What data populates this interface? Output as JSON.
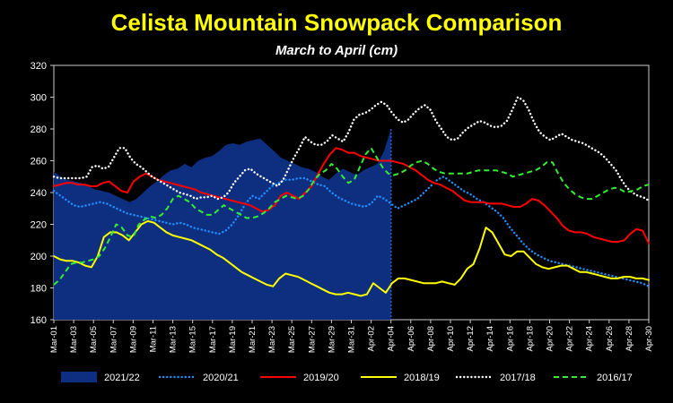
{
  "chart_data": {
    "type": "line",
    "title": "Celista Mountain Snowpack Comparison",
    "subtitle": "March to April  (cm)",
    "xlabel": "",
    "ylabel": "",
    "ylim": [
      160,
      320
    ],
    "yticks": [
      160,
      180,
      200,
      220,
      240,
      260,
      280,
      300,
      320
    ],
    "grid": false,
    "legend": "bottom",
    "x_tick_labels": [
      "Mar-01",
      "Mar-03",
      "Mar-05",
      "Mar-07",
      "Mar-09",
      "Mar-11",
      "Mar-13",
      "Mar-15",
      "Mar-17",
      "Mar-19",
      "Mar-21",
      "Mar-23",
      "Mar-25",
      "Mar-27",
      "Mar-29",
      "Mar-31",
      "Apr-02",
      "Apr-04",
      "Apr-06",
      "Apr-08",
      "Apr-10",
      "Apr-12",
      "Apr-14",
      "Apr-16",
      "Apr-18",
      "Apr-20",
      "Apr-22",
      "Apr-24",
      "Apr-26",
      "Apr-28",
      "Apr-30"
    ],
    "series": [
      {
        "name": "2021/22",
        "style": "area",
        "color": "#0e2f7f",
        "values": [
          253,
          250,
          248,
          247,
          246,
          244,
          242,
          241,
          240,
          238,
          236,
          234,
          236,
          240,
          244,
          247,
          251,
          254,
          255,
          258,
          256,
          260,
          262,
          263,
          266,
          270,
          271,
          270,
          272,
          273,
          274,
          270,
          266,
          262,
          260,
          258,
          256,
          255,
          253,
          250,
          248,
          252,
          255,
          253,
          251,
          254,
          256,
          258,
          266,
          280
        ]
      },
      {
        "name": "2020/21",
        "style": "dotted",
        "color": "#1e90ff",
        "values": [
          241,
          238,
          235,
          232,
          231,
          232,
          233,
          234,
          233,
          231,
          229,
          227,
          226,
          225,
          224,
          223,
          222,
          221,
          220,
          221,
          220,
          218,
          217,
          216,
          215,
          214,
          216,
          220,
          226,
          233,
          238,
          236,
          240,
          244,
          246,
          248,
          248,
          249,
          249,
          247,
          245,
          244,
          240,
          237,
          235,
          233,
          232,
          231,
          233,
          238,
          236,
          233,
          230,
          232,
          234,
          236,
          240,
          244,
          248,
          250,
          247,
          244,
          241,
          239,
          236,
          234,
          231,
          228,
          224,
          218,
          213,
          208,
          204,
          201,
          199,
          197,
          196,
          195,
          194,
          193,
          192,
          191,
          190,
          189,
          188,
          187,
          186,
          185,
          184,
          183,
          181
        ]
      },
      {
        "name": "2019/20",
        "style": "solid",
        "color": "#ff0000",
        "values": [
          244,
          245,
          246,
          246,
          245,
          245,
          244,
          244,
          246,
          247,
          244,
          241,
          240,
          247,
          250,
          252,
          250,
          248,
          247,
          246,
          245,
          244,
          243,
          242,
          240,
          239,
          238,
          237,
          236,
          235,
          234,
          233,
          232,
          230,
          228,
          229,
          232,
          238,
          240,
          238,
          236,
          240,
          244,
          251,
          258,
          264,
          268,
          267,
          265,
          265,
          263,
          262,
          261,
          260,
          260,
          260,
          259,
          258,
          256,
          254,
          251,
          248,
          246,
          245,
          243,
          241,
          238,
          235,
          234,
          234,
          234,
          233,
          233,
          233,
          232,
          231,
          231,
          233,
          236,
          235,
          232,
          228,
          224,
          219,
          216,
          215,
          215,
          214,
          212,
          211,
          210,
          209,
          209,
          210,
          214,
          217,
          216,
          208
        ]
      },
      {
        "name": "2018/19",
        "style": "solid",
        "color": "#ffff00",
        "values": [
          200,
          198,
          197,
          197,
          196,
          194,
          193,
          200,
          212,
          215,
          215,
          213,
          210,
          215,
          220,
          222,
          221,
          218,
          215,
          213,
          212,
          211,
          210,
          208,
          206,
          204,
          201,
          199,
          196,
          193,
          190,
          188,
          186,
          184,
          182,
          181,
          186,
          189,
          188,
          187,
          185,
          183,
          181,
          179,
          177,
          176,
          176,
          177,
          176,
          175,
          176,
          183,
          180,
          177,
          183,
          186,
          186,
          185,
          184,
          183,
          183,
          183,
          184,
          183,
          182,
          186,
          192,
          195,
          205,
          218,
          215,
          208,
          201,
          200,
          203,
          203,
          199,
          195,
          193,
          192,
          193,
          194,
          194,
          192,
          190,
          190,
          189,
          188,
          187,
          186,
          186,
          187,
          187,
          186,
          186,
          185
        ]
      },
      {
        "name": "2017/18",
        "style": "dotted",
        "color": "#ffffff",
        "values": [
          250,
          249,
          249,
          249,
          249,
          249,
          250,
          256,
          257,
          255,
          256,
          262,
          268,
          268,
          262,
          258,
          256,
          253,
          250,
          248,
          246,
          244,
          242,
          240,
          239,
          238,
          236,
          237,
          237,
          238,
          236,
          237,
          240,
          246,
          250,
          254,
          255,
          252,
          250,
          248,
          246,
          244,
          248,
          255,
          262,
          268,
          275,
          272,
          270,
          270,
          272,
          276,
          274,
          272,
          278,
          286,
          289,
          290,
          292,
          295,
          297,
          295,
          290,
          286,
          284,
          286,
          290,
          293,
          295,
          292,
          285,
          280,
          275,
          273,
          274,
          278,
          281,
          283,
          285,
          284,
          282,
          281,
          282,
          285,
          292,
          300,
          298,
          292,
          284,
          278,
          275,
          273,
          275,
          277,
          275,
          273,
          272,
          271,
          269,
          267,
          265,
          262,
          258,
          254,
          248,
          243,
          240,
          238,
          237,
          235
        ]
      },
      {
        "name": "2016/17",
        "style": "dashed",
        "color": "#33ee33",
        "values": [
          182,
          185,
          190,
          195,
          196,
          196,
          197,
          198,
          200,
          205,
          212,
          220,
          218,
          213,
          212,
          220,
          223,
          225,
          224,
          226,
          230,
          236,
          238,
          236,
          234,
          230,
          228,
          226,
          226,
          229,
          232,
          230,
          228,
          226,
          224,
          224,
          225,
          227,
          230,
          234,
          236,
          238,
          237,
          236,
          238,
          242,
          248,
          252,
          254,
          258,
          255,
          250,
          246,
          248,
          256,
          264,
          268,
          262,
          256,
          252,
          251,
          252,
          254,
          257,
          259,
          260,
          258,
          255,
          253,
          252,
          252,
          252,
          252,
          252,
          253,
          254,
          254,
          254,
          254,
          253,
          252,
          250,
          251,
          252,
          253,
          254,
          256,
          259,
          259,
          252,
          246,
          242,
          239,
          237,
          236,
          236,
          238,
          240,
          242,
          243,
          242,
          240,
          241,
          242,
          244,
          245
        ]
      }
    ]
  }
}
